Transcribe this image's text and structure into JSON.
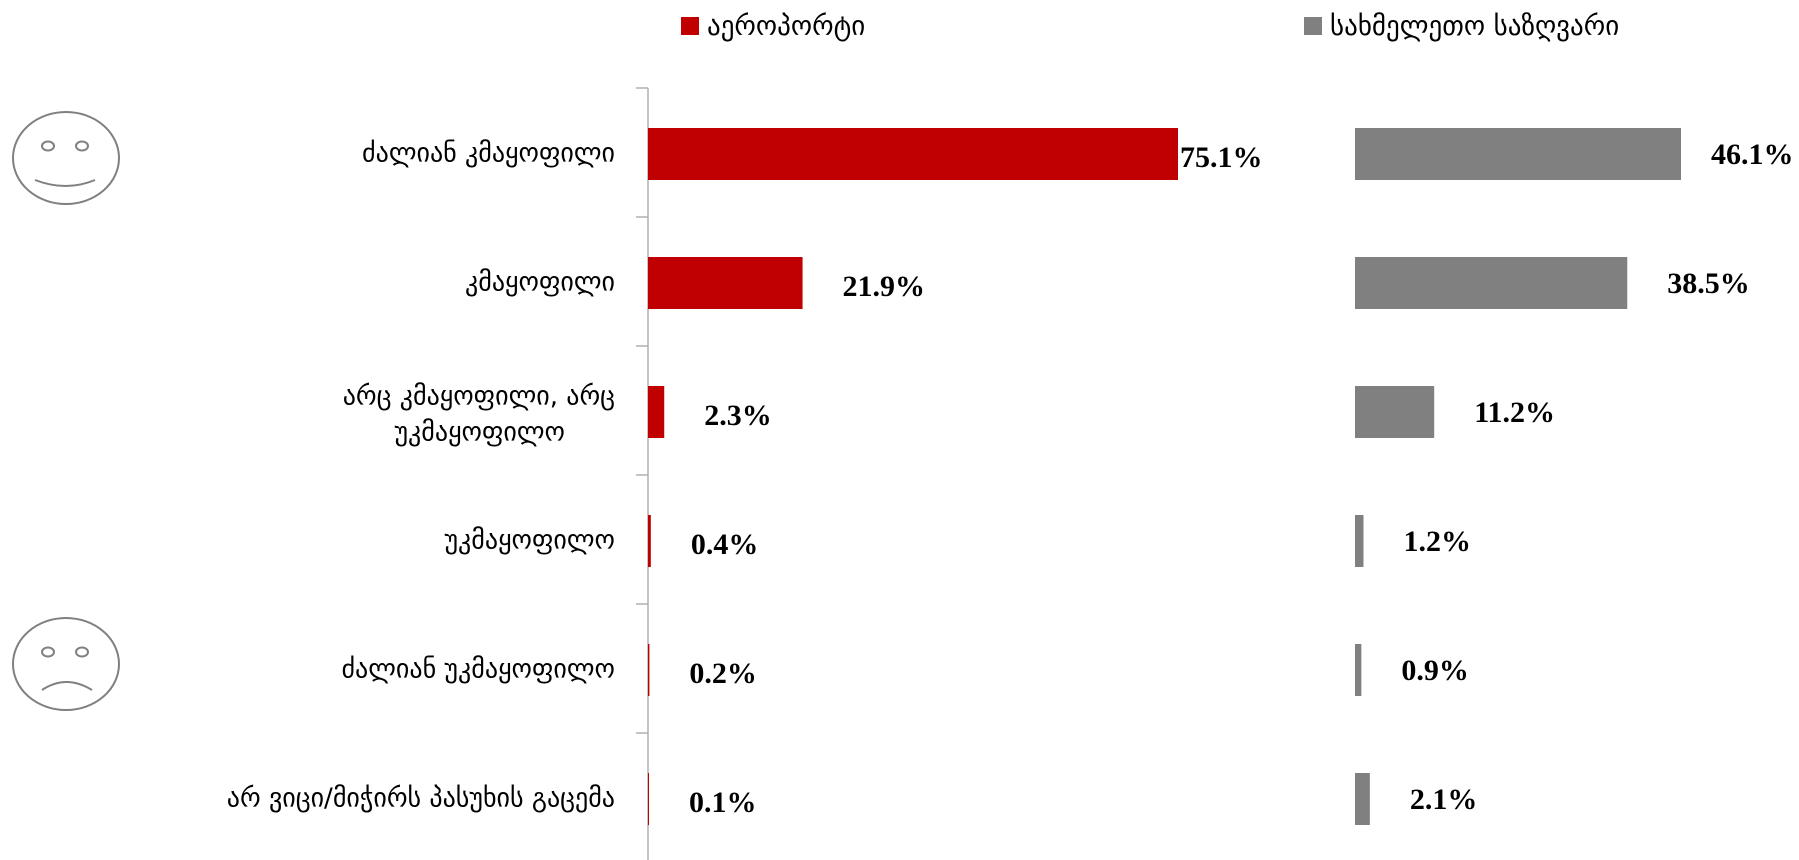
{
  "chart_data": {
    "type": "bar",
    "orientation": "horizontal",
    "categories": [
      "ძალიან კმაყოფილი",
      "კმაყოფილი",
      "არც კმაყოფილი, არც უკმაყოფილო",
      "უკმაყოფილო",
      "ძალიან უკმაყოფილო",
      "არ ვიცი/მიჭირს პასუხის გაცემა"
    ],
    "series": [
      {
        "name": "აეროპორტი",
        "color": "#C00000",
        "values": [
          75.1,
          21.9,
          2.3,
          0.4,
          0.2,
          0.1
        ],
        "labels": [
          "75.1%",
          "21.9%",
          "2.3%",
          "0.4%",
          "0.2%",
          "0.1%"
        ]
      },
      {
        "name": "სახმელეთო საზღვარი",
        "color": "#808080",
        "values": [
          46.1,
          38.5,
          11.2,
          1.2,
          0.9,
          2.1
        ],
        "labels": [
          "46.1%",
          "38.5%",
          "11.2%",
          "1.2%",
          "0.9%",
          "2.1%"
        ]
      }
    ],
    "legend": "top",
    "grid": false,
    "icons": [
      "smiley-face-icon",
      "sad-face-icon"
    ]
  }
}
